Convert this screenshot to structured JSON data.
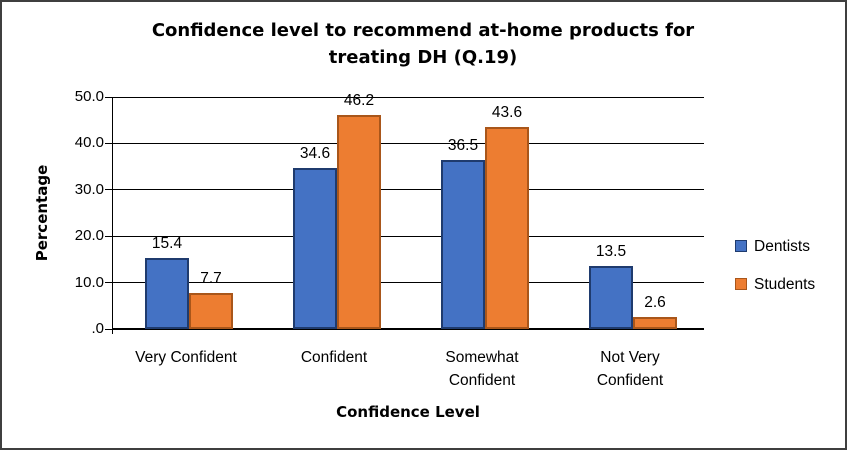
{
  "chart_data": {
    "type": "bar",
    "title": "Confidence level to recommend at-home products for treating DH (Q.19)",
    "xlabel": "Confidence Level",
    "ylabel": "Percentage",
    "categories": [
      "Very Confident",
      "Confident",
      "Somewhat Confident",
      "Not Very Confident"
    ],
    "series": [
      {
        "name": "Dentists",
        "color": "#4472C4",
        "border_color": "#1F3B6E",
        "values": [
          15.4,
          34.6,
          36.5,
          13.5
        ]
      },
      {
        "name": "Students",
        "color": "#ED7D31",
        "border_color": "#A9561A",
        "values": [
          7.7,
          46.2,
          43.6,
          2.6
        ]
      }
    ],
    "data_labels": [
      "15.4",
      "7.7",
      "34.6",
      "46.2",
      "36.5",
      "43.6",
      "13.5",
      "2.6"
    ],
    "ylim": [
      0,
      50
    ],
    "ytick_interval": 10,
    "ytick_labels_top_to_bottom": [
      "50.0",
      "40.0",
      "30.0",
      "20.0",
      "10.0",
      ".0"
    ],
    "grid": true,
    "legend_position": "right",
    "axis_color": "#000000",
    "frame_border_color": "#3f3f3f"
  }
}
